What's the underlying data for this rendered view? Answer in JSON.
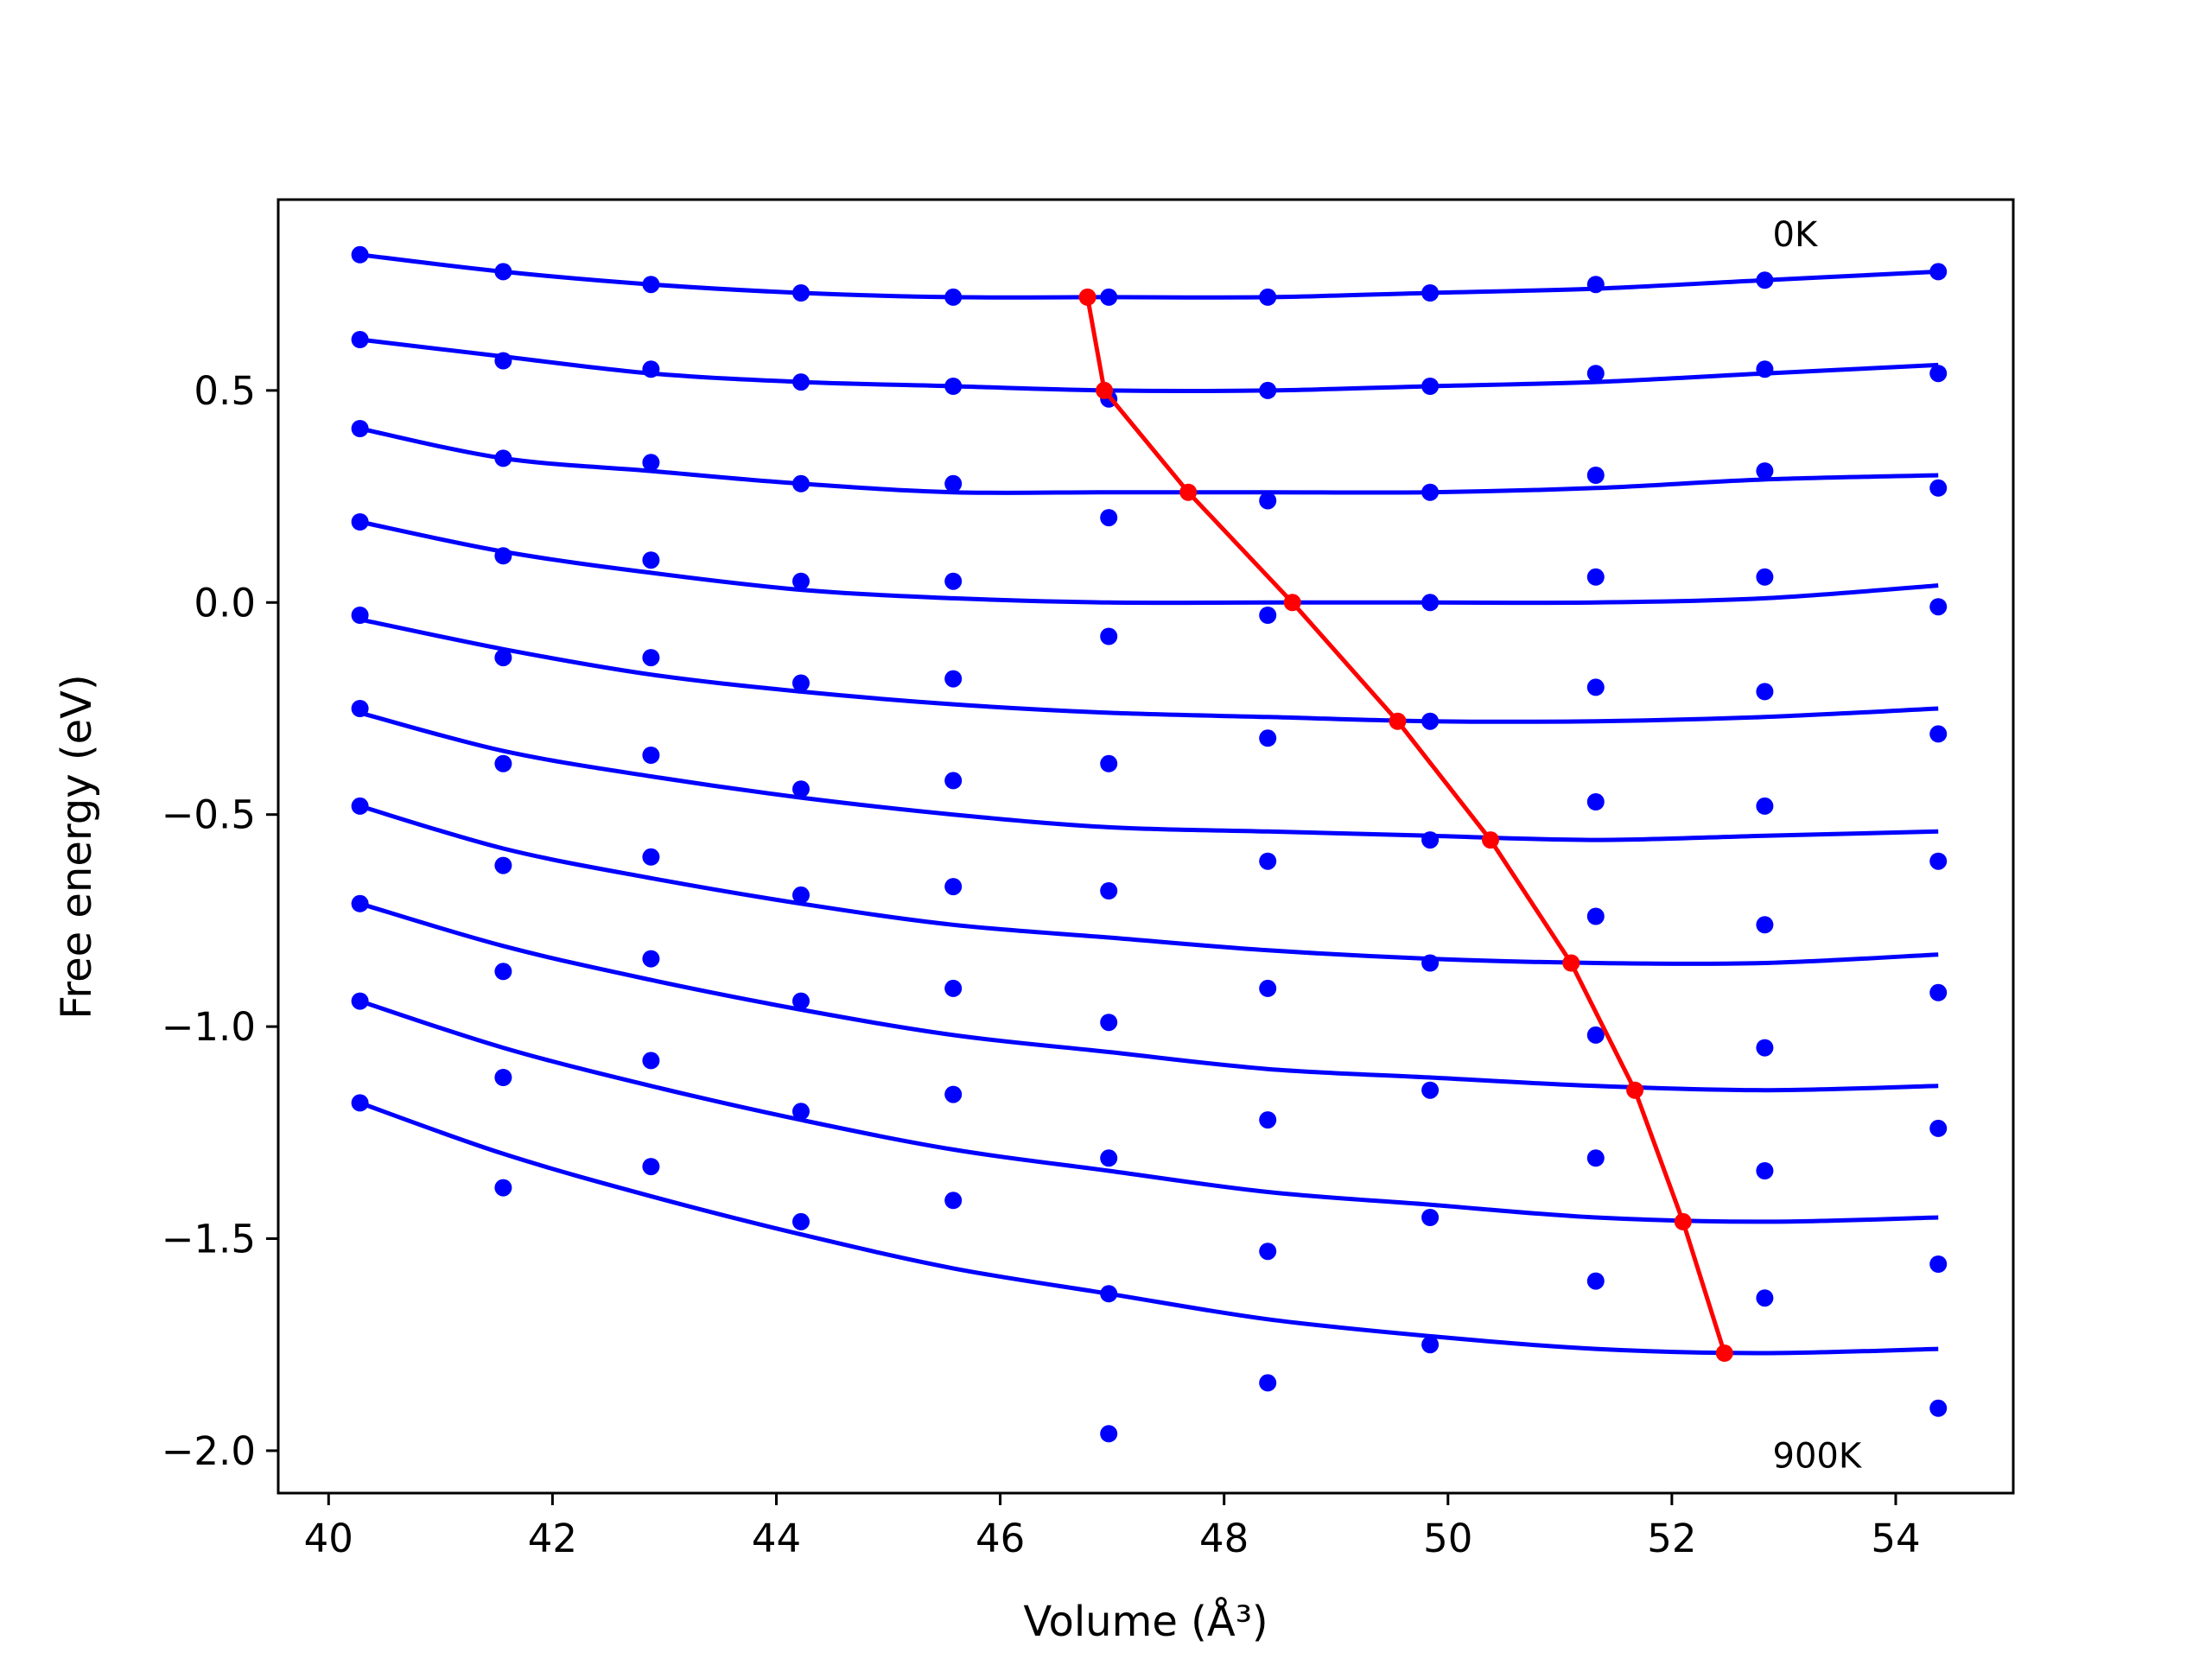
{
  "chart_data": {
    "type": "line",
    "xlabel": "Volume (Å³)",
    "ylabel": "Free energy (eV)",
    "xlim": [
      39.55,
      55.05
    ],
    "ylim": [
      -2.1,
      0.95
    ],
    "xticks": [
      40,
      42,
      44,
      46,
      48,
      50,
      52,
      54
    ],
    "xtick_labels": [
      "40",
      "42",
      "44",
      "46",
      "48",
      "50",
      "52",
      "54"
    ],
    "yticks": [
      -2.0,
      -1.5,
      -1.0,
      -0.5,
      0.0,
      0.5
    ],
    "ytick_labels": [
      "−2.0",
      "−1.5",
      "−1.0",
      "−0.5",
      "0.0",
      "0.5"
    ],
    "annotations": [
      {
        "text": "0K",
        "x": 52.9,
        "y": 0.84
      },
      {
        "text": "900K",
        "x": 52.9,
        "y": -2.04
      }
    ],
    "grid": false,
    "colors": {
      "fits": "#0000ff",
      "data_points": "#0000ff",
      "minimum_path": "#ff0000"
    },
    "data_x": [
      40.28,
      41.56,
      42.88,
      44.22,
      45.58,
      46.97,
      48.39,
      49.84,
      51.32,
      52.83,
      54.38
    ],
    "data_series": [
      {
        "values": [
          0.82,
          0.78,
          0.75,
          0.73,
          0.72,
          0.72,
          0.72,
          0.73,
          0.75,
          0.76,
          0.78
        ]
      },
      {
        "values": [
          0.62,
          0.57,
          0.55,
          0.52,
          0.51,
          0.48,
          0.5,
          0.51,
          0.54,
          0.55,
          0.54
        ]
      },
      {
        "values": [
          0.41,
          0.34,
          0.33,
          0.28,
          0.28,
          0.2,
          0.24,
          0.26,
          0.3,
          0.31,
          0.27
        ]
      },
      {
        "values": [
          0.19,
          0.11,
          0.1,
          0.05,
          0.05,
          -0.08,
          -0.03,
          0.0,
          0.06,
          0.06,
          -0.01
        ]
      },
      {
        "values": [
          -0.03,
          -0.13,
          -0.13,
          -0.19,
          -0.18,
          -0.38,
          -0.32,
          -0.28,
          -0.2,
          -0.21,
          -0.31
        ]
      },
      {
        "values": [
          -0.25,
          -0.38,
          -0.36,
          -0.44,
          -0.42,
          -0.68,
          -0.61,
          -0.56,
          -0.47,
          -0.48,
          -0.61
        ]
      },
      {
        "values": [
          -0.48,
          -0.62,
          -0.6,
          -0.69,
          -0.67,
          -0.99,
          -0.91,
          -0.85,
          -0.74,
          -0.76,
          -0.92
        ]
      },
      {
        "values": [
          -0.71,
          -0.87,
          -0.84,
          -0.94,
          -0.91,
          -1.31,
          -1.22,
          -1.15,
          -1.02,
          -1.05,
          -1.24
        ]
      },
      {
        "values": [
          -0.94,
          -1.12,
          -1.08,
          -1.2,
          -1.16,
          -1.63,
          -1.53,
          -1.45,
          -1.31,
          -1.34,
          -1.56
        ]
      },
      {
        "values": [
          -1.18,
          -1.38,
          -1.33,
          -1.46,
          -1.41,
          -1.96,
          -1.84,
          -1.75,
          -1.6,
          -1.64,
          -1.9
        ]
      }
    ],
    "fit_x": [
      40.28,
      41.56,
      42.88,
      44.22,
      45.58,
      46.97,
      48.39,
      49.84,
      51.32,
      52.83,
      54.38
    ],
    "fit_series": [
      {
        "values": [
          0.82,
          0.78,
          0.75,
          0.73,
          0.72,
          0.72,
          0.72,
          0.73,
          0.74,
          0.76,
          0.78
        ]
      },
      {
        "values": [
          0.62,
          0.58,
          0.54,
          0.52,
          0.51,
          0.5,
          0.5,
          0.51,
          0.52,
          0.54,
          0.56
        ]
      },
      {
        "values": [
          0.41,
          0.34,
          0.31,
          0.28,
          0.26,
          0.26,
          0.26,
          0.26,
          0.27,
          0.29,
          0.3
        ]
      },
      {
        "values": [
          0.19,
          0.12,
          0.07,
          0.03,
          0.01,
          0.0,
          0.0,
          0.0,
          0.0,
          0.01,
          0.04
        ]
      },
      {
        "values": [
          -0.04,
          -0.11,
          -0.17,
          -0.21,
          -0.24,
          -0.26,
          -0.27,
          -0.28,
          -0.28,
          -0.27,
          -0.25
        ]
      },
      {
        "values": [
          -0.26,
          -0.35,
          -0.41,
          -0.46,
          -0.5,
          -0.53,
          -0.54,
          -0.55,
          -0.56,
          -0.55,
          -0.54
        ]
      },
      {
        "values": [
          -0.48,
          -0.58,
          -0.65,
          -0.71,
          -0.76,
          -0.79,
          -0.82,
          -0.84,
          -0.85,
          -0.85,
          -0.83
        ]
      },
      {
        "values": [
          -0.71,
          -0.81,
          -0.89,
          -0.96,
          -1.02,
          -1.06,
          -1.1,
          -1.12,
          -1.14,
          -1.15,
          -1.14
        ]
      },
      {
        "values": [
          -0.94,
          -1.05,
          -1.14,
          -1.22,
          -1.29,
          -1.34,
          -1.39,
          -1.42,
          -1.45,
          -1.46,
          -1.45
        ]
      },
      {
        "values": [
          -1.18,
          -1.3,
          -1.4,
          -1.49,
          -1.57,
          -1.63,
          -1.69,
          -1.73,
          -1.76,
          -1.77,
          -1.76
        ]
      }
    ],
    "minimum_path": {
      "x": [
        46.78,
        46.93,
        47.68,
        48.61,
        49.55,
        50.38,
        51.1,
        51.67,
        52.1,
        52.47
      ],
      "values": [
        0.72,
        0.5,
        0.26,
        0.0,
        -0.28,
        -0.56,
        -0.85,
        -1.15,
        -1.46,
        -1.77
      ]
    }
  }
}
